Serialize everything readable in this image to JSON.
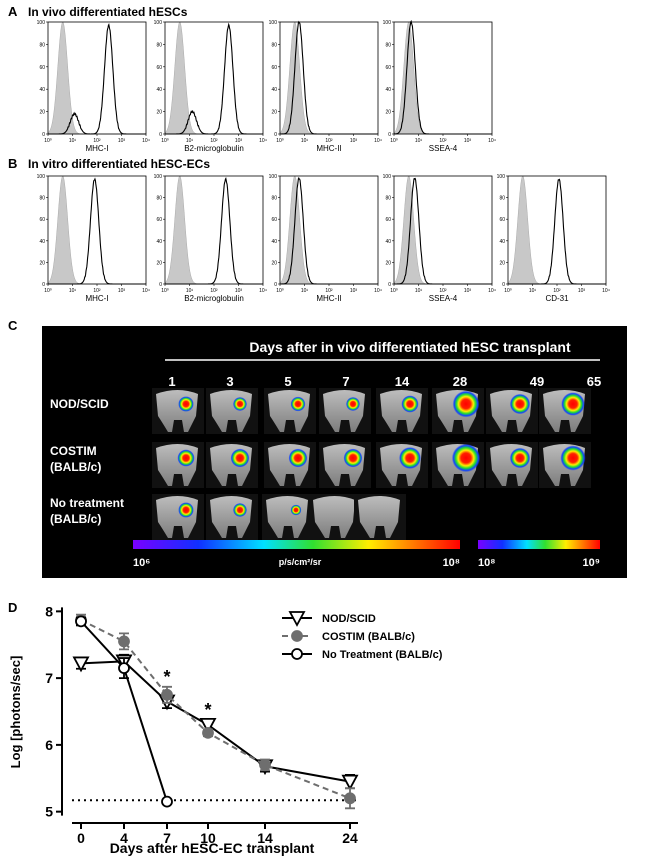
{
  "panel_a": {
    "letter": "A",
    "title": "In vivo differentiated hESCs",
    "xlim": [
      1,
      10000
    ],
    "xscale": "log",
    "xticks": [
      {
        "value": 1,
        "label": "10⁰"
      },
      {
        "value": 10,
        "label": "10¹"
      },
      {
        "value": 100,
        "label": "10²"
      },
      {
        "value": 1000,
        "label": "10³"
      },
      {
        "value": 10000,
        "label": "10⁴"
      }
    ],
    "ylim": [
      0,
      100
    ],
    "yticks": [
      0,
      20,
      40,
      60,
      80,
      100
    ],
    "isotype_peak": {
      "x": 4,
      "height": 100,
      "color": "#c8c8c8"
    },
    "plots": [
      {
        "label": "MHC-I",
        "peaks": [
          {
            "x": 300,
            "height": 97
          },
          {
            "x": 12,
            "height": 18
          }
        ]
      },
      {
        "label": "B2-microglobulin",
        "peaks": [
          {
            "x": 400,
            "height": 97
          },
          {
            "x": 13,
            "height": 20
          }
        ]
      },
      {
        "label": "MHC-II",
        "peaks": [
          {
            "x": 6,
            "height": 100
          }
        ]
      },
      {
        "label": "SSEA-4",
        "peaks": [
          {
            "x": 5,
            "height": 100
          }
        ]
      }
    ]
  },
  "panel_b": {
    "letter": "B",
    "title": "In vitro differentiated hESC-ECs",
    "xlim": [
      1,
      10000
    ],
    "xscale": "log",
    "xticks": [
      {
        "value": 1,
        "label": "10⁰"
      },
      {
        "value": 10,
        "label": "10¹"
      },
      {
        "value": 100,
        "label": "10²"
      },
      {
        "value": 1000,
        "label": "10³"
      },
      {
        "value": 10000,
        "label": "10⁴"
      }
    ],
    "ylim": [
      0,
      100
    ],
    "yticks": [
      0,
      20,
      40,
      60,
      80,
      100
    ],
    "isotype_peak": {
      "x": 4,
      "height": 100,
      "color": "#c8c8c8"
    },
    "plots": [
      {
        "label": "MHC-I",
        "peaks": [
          {
            "x": 80,
            "height": 97
          }
        ]
      },
      {
        "label": "B2-microglobulin",
        "peaks": [
          {
            "x": 300,
            "height": 97
          }
        ]
      },
      {
        "label": "MHC-II",
        "peaks": [
          {
            "x": 6,
            "height": 98
          }
        ]
      },
      {
        "label": "SSEA-4",
        "peaks": [
          {
            "x": 7,
            "height": 98
          }
        ]
      },
      {
        "label": "CD-31",
        "peaks": [
          {
            "x": 120,
            "height": 97
          }
        ]
      }
    ]
  },
  "panel_c": {
    "letter": "C",
    "title": "Days after in vivo differentiated hESC transplant",
    "days": [
      "1",
      "3",
      "5",
      "7",
      "14",
      "28",
      "49",
      "65"
    ],
    "rows": [
      {
        "label": "NOD/SCID"
      },
      {
        "label": "COSTIM",
        "sublabel": "(BALB/c)"
      },
      {
        "label": "No treatment",
        "sublabel": "(BALB/c)"
      }
    ],
    "colorbar_1": {
      "min": {
        "value": 1000000,
        "label": "10⁶"
      },
      "unit": "p/s/cm²/sr",
      "max": {
        "value": 100000000,
        "label": "10⁸"
      }
    },
    "colorbar_2": {
      "min": {
        "value": 100000000,
        "label": "10⁸"
      },
      "max": {
        "value": 1000000000,
        "label": "10⁹"
      }
    }
  },
  "chart_data": {
    "type": "line",
    "panel_label": "D",
    "x_label": "Days after hESC-EC transplant",
    "y_label": "Log [photons/sec]",
    "categories": [
      "0",
      "4",
      "7",
      "10",
      "14",
      "24"
    ],
    "ylim": [
      4.83,
      8.17
    ],
    "yticks": [
      5,
      6,
      7,
      8
    ],
    "reference_line": 5.17,
    "annotations": [
      {
        "text": "*",
        "category": "7"
      },
      {
        "text": "*",
        "category": "10"
      }
    ],
    "series": [
      {
        "name": "NOD/SCID",
        "color": "#000000",
        "marker": "triangle-down",
        "marker_fill": "#ffffff",
        "dash": "solid",
        "values": [
          7.22,
          7.25,
          6.65,
          6.3,
          5.68,
          5.45
        ],
        "errors": [
          0.08,
          0.1,
          0.1,
          0.07,
          0.08,
          0.1
        ]
      },
      {
        "name": "COSTIM (BALB/c)",
        "color": "#6e6e6e",
        "marker": "circle",
        "marker_fill": "#6e6e6e",
        "dash": "dashed",
        "values": [
          7.87,
          7.55,
          6.75,
          6.18,
          5.7,
          5.2
        ],
        "errors": [
          0.08,
          0.12,
          0.12,
          0.05,
          0.08,
          0.15
        ]
      },
      {
        "name": "No Treatment (BALB/c)",
        "color": "#000000",
        "marker": "circle",
        "marker_fill": "#ffffff",
        "dash": "solid",
        "values": [
          7.85,
          7.15,
          5.15,
          null,
          null,
          null
        ],
        "errors": [
          0.06,
          0.15,
          0.0,
          null,
          null,
          null
        ]
      }
    ]
  }
}
